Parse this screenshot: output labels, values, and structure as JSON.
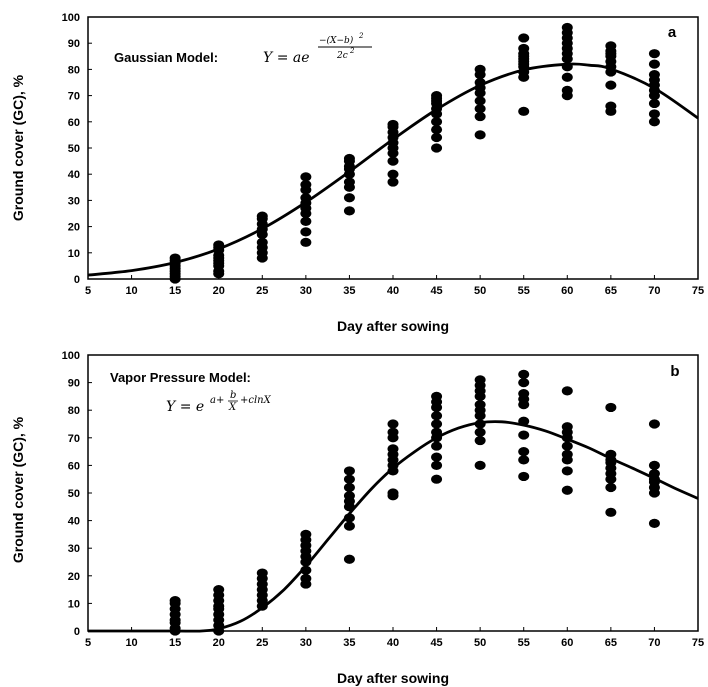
{
  "chart_data": [
    {
      "type": "scatter",
      "panel_label": "a",
      "model_label": "Gaussian Model:",
      "equation": {
        "lhs": "Y = ae",
        "exponent_numerator": "−(X−b)",
        "exponent_numerator_power": "2",
        "exponent_denominator": "2c",
        "exponent_denominator_power": "2"
      },
      "xlabel": "Day after sowing",
      "ylabel": "Ground cover (GC), %",
      "xlim": [
        5,
        75
      ],
      "ylim": [
        0,
        100
      ],
      "xticks": [
        5,
        10,
        15,
        20,
        25,
        30,
        35,
        40,
        45,
        50,
        55,
        60,
        65,
        70,
        75
      ],
      "yticks": [
        0,
        10,
        20,
        30,
        40,
        50,
        60,
        70,
        80,
        90,
        100
      ],
      "grid": false,
      "series": [
        {
          "kind": "observed",
          "points": [
            [
              15,
              0
            ],
            [
              15,
              1
            ],
            [
              15,
              2
            ],
            [
              15,
              3
            ],
            [
              15,
              4
            ],
            [
              15,
              5
            ],
            [
              15,
              6
            ],
            [
              15,
              7
            ],
            [
              15,
              8
            ],
            [
              20,
              2
            ],
            [
              20,
              3
            ],
            [
              20,
              5
            ],
            [
              20,
              6
            ],
            [
              20,
              7
            ],
            [
              20,
              8
            ],
            [
              20,
              9
            ],
            [
              20,
              11
            ],
            [
              20,
              12
            ],
            [
              20,
              13
            ],
            [
              25,
              8
            ],
            [
              25,
              10
            ],
            [
              25,
              12
            ],
            [
              25,
              14
            ],
            [
              25,
              17
            ],
            [
              25,
              19
            ],
            [
              25,
              21
            ],
            [
              25,
              23
            ],
            [
              25,
              24
            ],
            [
              30,
              14
            ],
            [
              30,
              18
            ],
            [
              30,
              22
            ],
            [
              30,
              25
            ],
            [
              30,
              27
            ],
            [
              30,
              29
            ],
            [
              30,
              31
            ],
            [
              30,
              34
            ],
            [
              30,
              36
            ],
            [
              30,
              39
            ],
            [
              35,
              26
            ],
            [
              35,
              31
            ],
            [
              35,
              35
            ],
            [
              35,
              37
            ],
            [
              35,
              40
            ],
            [
              35,
              42
            ],
            [
              35,
              43
            ],
            [
              35,
              45
            ],
            [
              35,
              46
            ],
            [
              40,
              37
            ],
            [
              40,
              40
            ],
            [
              40,
              45
            ],
            [
              40,
              48
            ],
            [
              40,
              50
            ],
            [
              40,
              52
            ],
            [
              40,
              54
            ],
            [
              40,
              56
            ],
            [
              40,
              58
            ],
            [
              40,
              59
            ],
            [
              45,
              50
            ],
            [
              45,
              54
            ],
            [
              45,
              57
            ],
            [
              45,
              60
            ],
            [
              45,
              63
            ],
            [
              45,
              65
            ],
            [
              45,
              67
            ],
            [
              45,
              68
            ],
            [
              45,
              69
            ],
            [
              45,
              70
            ],
            [
              50,
              55
            ],
            [
              50,
              62
            ],
            [
              50,
              65
            ],
            [
              50,
              68
            ],
            [
              50,
              71
            ],
            [
              50,
              73
            ],
            [
              50,
              75
            ],
            [
              50,
              78
            ],
            [
              50,
              80
            ],
            [
              55,
              64
            ],
            [
              55,
              77
            ],
            [
              55,
              79
            ],
            [
              55,
              81
            ],
            [
              55,
              82
            ],
            [
              55,
              83
            ],
            [
              55,
              84
            ],
            [
              55,
              85
            ],
            [
              55,
              86
            ],
            [
              55,
              88
            ],
            [
              55,
              92
            ],
            [
              60,
              70
            ],
            [
              60,
              72
            ],
            [
              60,
              77
            ],
            [
              60,
              81
            ],
            [
              60,
              84
            ],
            [
              60,
              86
            ],
            [
              60,
              88
            ],
            [
              60,
              90
            ],
            [
              60,
              92
            ],
            [
              60,
              94
            ],
            [
              60,
              96
            ],
            [
              65,
              64
            ],
            [
              65,
              66
            ],
            [
              65,
              74
            ],
            [
              65,
              79
            ],
            [
              65,
              81
            ],
            [
              65,
              83
            ],
            [
              65,
              85
            ],
            [
              65,
              86
            ],
            [
              65,
              87
            ],
            [
              65,
              89
            ],
            [
              70,
              60
            ],
            [
              70,
              63
            ],
            [
              70,
              67
            ],
            [
              70,
              70
            ],
            [
              70,
              72
            ],
            [
              70,
              74
            ],
            [
              70,
              76
            ],
            [
              70,
              78
            ],
            [
              70,
              82
            ],
            [
              70,
              86
            ]
          ]
        },
        {
          "kind": "fitted",
          "points": [
            [
              5,
              1.5
            ],
            [
              10,
              3.2
            ],
            [
              15,
              6.3
            ],
            [
              20,
              11.5
            ],
            [
              25,
              19.2
            ],
            [
              30,
              29.3
            ],
            [
              35,
              41.0
            ],
            [
              40,
              53.3
            ],
            [
              45,
              64.7
            ],
            [
              50,
              73.9
            ],
            [
              55,
              79.8
            ],
            [
              60,
              82.0
            ],
            [
              62.5,
              81.6
            ],
            [
              65,
              80.2
            ],
            [
              70,
              72.8
            ],
            [
              75,
              61.4
            ]
          ]
        }
      ]
    },
    {
      "type": "scatter",
      "panel_label": "b",
      "model_label": "Vapor Pressure Model:",
      "equation": {
        "lhs": "Y = e",
        "exponent_lead": "a+",
        "exponent_frac_numerator": "b",
        "exponent_frac_denominator": "X",
        "exponent_tail": "+clnX"
      },
      "xlabel": "Day after sowing",
      "ylabel": "Ground cover (GC), %",
      "xlim": [
        5,
        75
      ],
      "ylim": [
        0,
        100
      ],
      "xticks": [
        5,
        10,
        15,
        20,
        25,
        30,
        35,
        40,
        45,
        50,
        55,
        60,
        65,
        70,
        75
      ],
      "yticks": [
        0,
        10,
        20,
        30,
        40,
        50,
        60,
        70,
        80,
        90,
        100
      ],
      "grid": false,
      "series": [
        {
          "kind": "observed",
          "points": [
            [
              15,
              0
            ],
            [
              15,
              1
            ],
            [
              15,
              3
            ],
            [
              15,
              4
            ],
            [
              15,
              6
            ],
            [
              15,
              8
            ],
            [
              15,
              10
            ],
            [
              15,
              11
            ],
            [
              20,
              0
            ],
            [
              20,
              2
            ],
            [
              20,
              4
            ],
            [
              20,
              6
            ],
            [
              20,
              8
            ],
            [
              20,
              9
            ],
            [
              20,
              11
            ],
            [
              20,
              13
            ],
            [
              20,
              15
            ],
            [
              25,
              9
            ],
            [
              25,
              11
            ],
            [
              25,
              13
            ],
            [
              25,
              15
            ],
            [
              25,
              17
            ],
            [
              25,
              19
            ],
            [
              25,
              21
            ],
            [
              30,
              17
            ],
            [
              30,
              19
            ],
            [
              30,
              22
            ],
            [
              30,
              25
            ],
            [
              30,
              27
            ],
            [
              30,
              29
            ],
            [
              30,
              31
            ],
            [
              30,
              33
            ],
            [
              30,
              35
            ],
            [
              35,
              26
            ],
            [
              35,
              38
            ],
            [
              35,
              41
            ],
            [
              35,
              45
            ],
            [
              35,
              47
            ],
            [
              35,
              49
            ],
            [
              35,
              52
            ],
            [
              35,
              55
            ],
            [
              35,
              58
            ],
            [
              40,
              49
            ],
            [
              40,
              50
            ],
            [
              40,
              58
            ],
            [
              40,
              60
            ],
            [
              40,
              62
            ],
            [
              40,
              64
            ],
            [
              40,
              66
            ],
            [
              40,
              70
            ],
            [
              40,
              72
            ],
            [
              40,
              75
            ],
            [
              45,
              55
            ],
            [
              45,
              60
            ],
            [
              45,
              63
            ],
            [
              45,
              67
            ],
            [
              45,
              70
            ],
            [
              45,
              72
            ],
            [
              45,
              75
            ],
            [
              45,
              78
            ],
            [
              45,
              81
            ],
            [
              45,
              83
            ],
            [
              45,
              85
            ],
            [
              50,
              60
            ],
            [
              50,
              69
            ],
            [
              50,
              72
            ],
            [
              50,
              75
            ],
            [
              50,
              78
            ],
            [
              50,
              80
            ],
            [
              50,
              82
            ],
            [
              50,
              85
            ],
            [
              50,
              87
            ],
            [
              50,
              89
            ],
            [
              50,
              91
            ],
            [
              55,
              56
            ],
            [
              55,
              62
            ],
            [
              55,
              65
            ],
            [
              55,
              71
            ],
            [
              55,
              76
            ],
            [
              55,
              82
            ],
            [
              55,
              84
            ],
            [
              55,
              86
            ],
            [
              55,
              90
            ],
            [
              55,
              93
            ],
            [
              60,
              51
            ],
            [
              60,
              58
            ],
            [
              60,
              62
            ],
            [
              60,
              64
            ],
            [
              60,
              67
            ],
            [
              60,
              70
            ],
            [
              60,
              72
            ],
            [
              60,
              74
            ],
            [
              60,
              87
            ],
            [
              65,
              43
            ],
            [
              65,
              52
            ],
            [
              65,
              55
            ],
            [
              65,
              57
            ],
            [
              65,
              59
            ],
            [
              65,
              61
            ],
            [
              65,
              62
            ],
            [
              65,
              64
            ],
            [
              65,
              81
            ],
            [
              70,
              39
            ],
            [
              70,
              50
            ],
            [
              70,
              52
            ],
            [
              70,
              54
            ],
            [
              70,
              55
            ],
            [
              70,
              57
            ],
            [
              70,
              60
            ],
            [
              70,
              75
            ]
          ]
        },
        {
          "kind": "fitted",
          "points": [
            [
              5,
              0
            ],
            [
              10,
              0
            ],
            [
              15,
              0
            ],
            [
              18,
              0
            ],
            [
              20,
              0.8
            ],
            [
              22.5,
              3.5
            ],
            [
              25,
              8.4
            ],
            [
              27.5,
              15.0
            ],
            [
              30,
              23.5
            ],
            [
              32.5,
              33.0
            ],
            [
              35,
              42.5
            ],
            [
              37.5,
              51.4
            ],
            [
              40,
              59.0
            ],
            [
              42.5,
              65.0
            ],
            [
              45,
              70.0
            ],
            [
              47.5,
              73.5
            ],
            [
              50,
              75.5
            ],
            [
              52.5,
              75.8
            ],
            [
              55,
              74.6
            ],
            [
              57.5,
              72.5
            ],
            [
              60,
              69.5
            ],
            [
              62.5,
              66.3
            ],
            [
              65,
              62.5
            ],
            [
              67.5,
              59.0
            ],
            [
              70,
              55.3
            ],
            [
              72.5,
              51.5
            ],
            [
              75,
              48.0
            ]
          ]
        }
      ]
    }
  ]
}
